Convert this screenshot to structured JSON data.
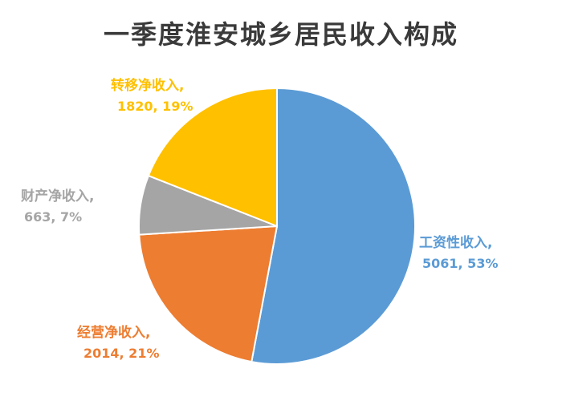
{
  "chart_data": {
    "type": "pie",
    "title": "一季度淮安城乡居民收入构成",
    "slices": [
      {
        "name": "工资性收入",
        "value": 5061,
        "percent": "53%",
        "color": "#5b9bd5",
        "label_line1": "工资性收入,",
        "label_line2": "5061, 53%"
      },
      {
        "name": "经营净收入",
        "value": 2014,
        "percent": "21%",
        "color": "#ed7d31",
        "label_line1": "经营净收入,",
        "label_line2": "2014, 21%"
      },
      {
        "name": "财产净收入",
        "value": 663,
        "percent": "7%",
        "color": "#a5a5a5",
        "label_line1": "财产净收入,",
        "label_line2": "663, 7%"
      },
      {
        "name": "转移净收入",
        "value": 1820,
        "percent": "19%",
        "color": "#ffc000",
        "label_line1": "转移净收入,",
        "label_line2": "1820, 19%"
      }
    ],
    "start_angle": "12 o'clock",
    "direction": "clockwise",
    "legend": "none"
  }
}
